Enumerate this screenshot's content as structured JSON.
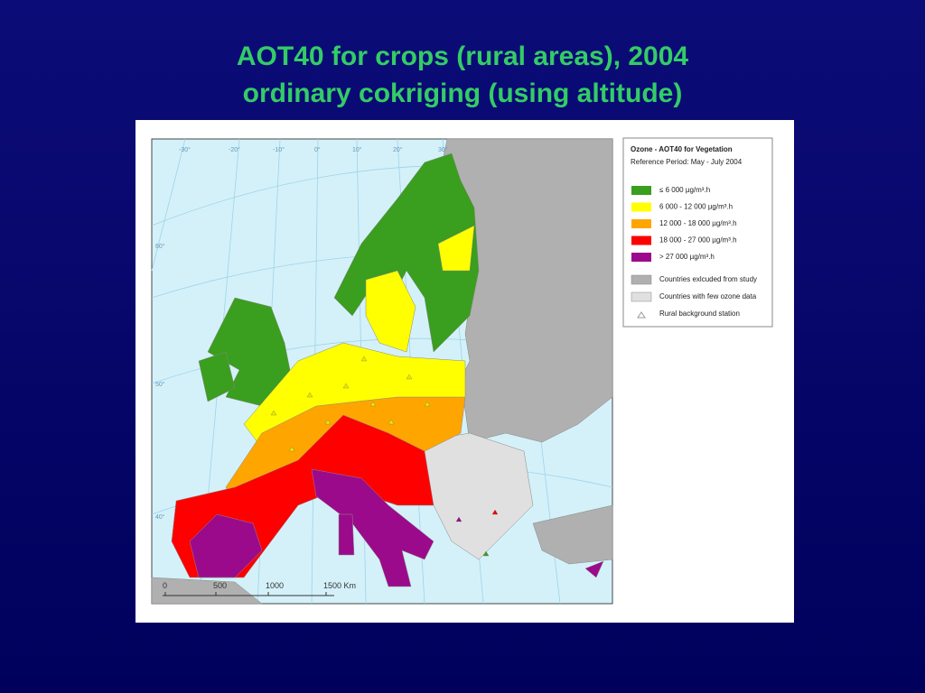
{
  "title": {
    "line1": "AOT40 for crops (rural areas), 2004",
    "line2": "ordinary cokriging (using altitude)"
  },
  "legend": {
    "title": "Ozone - AOT40 for Vegetation",
    "subtitle": "Reference Period: May - July 2004",
    "classes": [
      {
        "label": "≤ 6 000 µg/m³.h",
        "color": "#3a9e1e"
      },
      {
        "label": "6 000 - 12 000 µg/m³.h",
        "color": "#ffff00"
      },
      {
        "label": "12 000 - 18 000 µg/m³.h",
        "color": "#ffa500"
      },
      {
        "label": "18 000 - 27 000 µg/m³.h",
        "color": "#ff0000"
      },
      {
        "label": "> 27 000 µg/m³.h",
        "color": "#9c0a8c"
      }
    ],
    "other": [
      {
        "label": "Countries exlcuded from study",
        "color": "#b0b0b0"
      },
      {
        "label": "Countries with few ozone data",
        "color": "#e0e0e0"
      }
    ],
    "station": "Rural background station"
  },
  "scale": [
    "0",
    "500",
    "1000",
    "1500 Km"
  ],
  "graticule": [
    "-30°",
    "-20°",
    "-10°",
    "0°",
    "10°",
    "20°",
    "30°",
    "60°",
    "50°",
    "40°"
  ]
}
